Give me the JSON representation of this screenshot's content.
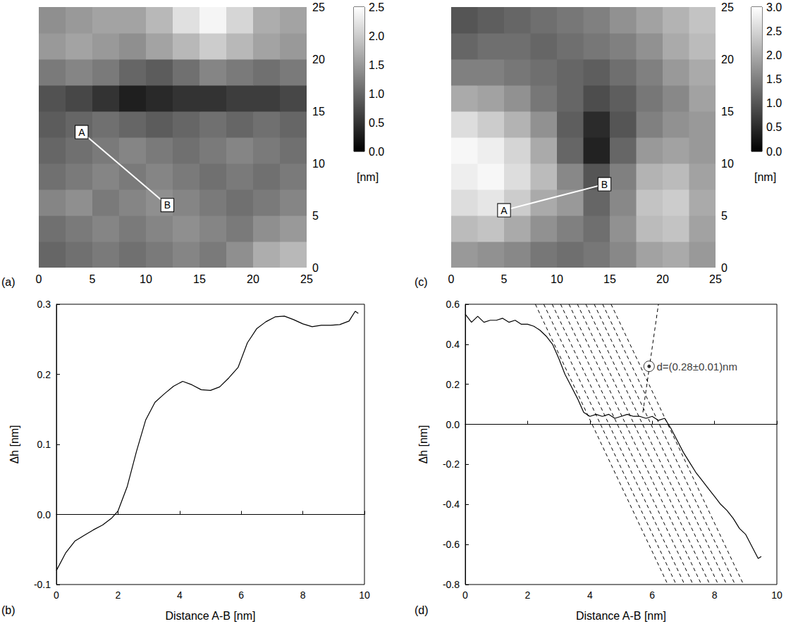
{
  "chart_data": [
    {
      "panel_label": "(a)",
      "type": "heatmap",
      "xlim": [
        0,
        25
      ],
      "xticks": [
        0,
        5,
        10,
        15,
        20,
        25
      ],
      "ylim": [
        0,
        25
      ],
      "yticks": [
        0,
        5,
        10,
        15,
        20,
        25
      ],
      "cells": [
        [
          1.0,
          1.1,
          1.2,
          1.1,
          1.2,
          1.3,
          1.2,
          1.4,
          1.7,
          1.8
        ],
        [
          1.1,
          1.2,
          1.3,
          1.2,
          1.3,
          1.4,
          1.3,
          1.2,
          1.4,
          1.5
        ],
        [
          1.3,
          1.4,
          1.2,
          1.3,
          1.4,
          1.3,
          1.2,
          1.1,
          1.2,
          1.3
        ],
        [
          1.1,
          1.2,
          1.3,
          1.2,
          1.3,
          1.2,
          1.1,
          1.2,
          1.1,
          1.2
        ],
        [
          1.0,
          1.1,
          1.2,
          1.3,
          1.2,
          1.1,
          1.2,
          1.3,
          1.2,
          1.1
        ],
        [
          0.9,
          1.0,
          1.1,
          1.0,
          0.9,
          1.0,
          1.1,
          1.0,
          1.1,
          1.0
        ],
        [
          0.8,
          0.7,
          0.5,
          0.3,
          0.4,
          0.5,
          0.5,
          0.6,
          0.6,
          0.7
        ],
        [
          1.2,
          1.3,
          1.2,
          1.0,
          0.9,
          1.1,
          1.3,
          1.2,
          1.1,
          1.2
        ],
        [
          1.5,
          1.6,
          1.5,
          1.4,
          1.6,
          1.8,
          2.0,
          1.8,
          1.6,
          1.5
        ],
        [
          1.4,
          1.5,
          1.6,
          1.6,
          1.8,
          2.2,
          2.4,
          2.1,
          1.7,
          1.6
        ]
      ],
      "colorbar": {
        "range": [
          0,
          2.5
        ],
        "ticks": [
          {
            "value": 0,
            "label": "0.0"
          },
          0.5,
          {
            "value": 1,
            "label": "1.0"
          },
          1.5,
          {
            "value": 2,
            "label": "2.0"
          },
          2.5
        ],
        "label": "[nm]"
      },
      "line": [
        {
          "label": "A",
          "x": 4,
          "y": 13
        },
        {
          "label": "B",
          "x": 12,
          "y": 6
        }
      ]
    },
    {
      "panel_label": "(c)",
      "type": "heatmap",
      "xlim": [
        0,
        25
      ],
      "xticks": [
        0,
        5,
        10,
        15,
        20,
        25
      ],
      "ylim": [
        0,
        25
      ],
      "yticks": [
        0,
        5,
        10,
        15,
        20,
        25
      ],
      "cells": [
        [
          1.8,
          1.7,
          1.6,
          1.4,
          1.3,
          1.4,
          1.6,
          1.9,
          2.0,
          1.8
        ],
        [
          2.2,
          2.3,
          2.0,
          1.7,
          1.5,
          1.3,
          1.7,
          2.2,
          2.3,
          1.9
        ],
        [
          2.6,
          2.7,
          2.4,
          2.0,
          1.8,
          1.2,
          1.6,
          2.3,
          2.4,
          2.0
        ],
        [
          2.8,
          2.9,
          2.6,
          2.2,
          1.6,
          1.0,
          1.5,
          2.1,
          2.2,
          1.9
        ],
        [
          2.9,
          2.8,
          2.5,
          2.0,
          1.2,
          0.4,
          1.2,
          1.8,
          1.9,
          1.8
        ],
        [
          2.6,
          2.4,
          2.1,
          1.7,
          1.1,
          0.5,
          1.0,
          1.5,
          1.7,
          1.8
        ],
        [
          2.0,
          1.9,
          1.7,
          1.4,
          1.2,
          0.9,
          1.1,
          1.4,
          1.6,
          1.9
        ],
        [
          1.5,
          1.5,
          1.4,
          1.3,
          1.2,
          1.1,
          1.3,
          1.5,
          1.8,
          2.0
        ],
        [
          1.2,
          1.3,
          1.3,
          1.2,
          1.3,
          1.4,
          1.5,
          1.7,
          2.0,
          2.2
        ],
        [
          1.0,
          1.1,
          1.2,
          1.3,
          1.4,
          1.5,
          1.7,
          1.9,
          2.1,
          2.3
        ]
      ],
      "colorbar": {
        "range": [
          0,
          3
        ],
        "ticks": [
          {
            "value": 0,
            "label": "0.0"
          },
          0.5,
          {
            "value": 1,
            "label": "1.0"
          },
          1.5,
          {
            "value": 2,
            "label": "2.0"
          },
          2.5,
          {
            "value": 3,
            "label": "3.0"
          }
        ],
        "label": "[nm]"
      },
      "line": [
        {
          "label": "A",
          "x": 5,
          "y": 5.5
        },
        {
          "label": "B",
          "x": 14.5,
          "y": 8
        }
      ]
    },
    {
      "panel_label": "(b)",
      "type": "line",
      "x_label": "Distance A-B [nm]",
      "y_label": "Δh [nm]",
      "xlim": [
        0,
        10
      ],
      "xticks": [
        0,
        2,
        4,
        6,
        8,
        10
      ],
      "ylim": [
        -0.1,
        0.3
      ],
      "yticks": [
        -0.1,
        {
          "value": 0,
          "label": "0.0"
        },
        0.1,
        0.2,
        0.3
      ],
      "series": [
        {
          "color": "#000000",
          "x": [
            0,
            0.3,
            0.6,
            0.9,
            1.2,
            1.5,
            1.8,
            2.0,
            2.3,
            2.6,
            2.9,
            3.2,
            3.5,
            3.8,
            4.1,
            4.4,
            4.7,
            5.0,
            5.3,
            5.6,
            5.9,
            6.2,
            6.5,
            6.8,
            7.1,
            7.4,
            7.7,
            8.0,
            8.3,
            8.6,
            8.9,
            9.2,
            9.5,
            9.7,
            9.8
          ],
          "values": [
            -0.08,
            -0.055,
            -0.038,
            -0.03,
            -0.022,
            -0.015,
            -0.005,
            0.005,
            0.04,
            0.09,
            0.135,
            0.16,
            0.172,
            0.183,
            0.19,
            0.185,
            0.178,
            0.177,
            0.182,
            0.195,
            0.21,
            0.245,
            0.265,
            0.275,
            0.282,
            0.283,
            0.278,
            0.272,
            0.268,
            0.27,
            0.27,
            0.271,
            0.276,
            0.29,
            0.287
          ]
        }
      ]
    },
    {
      "panel_label": "(d)",
      "type": "line",
      "x_label": "Distance A-B [nm]",
      "y_label": "Δh [nm]",
      "xlim": [
        0,
        10
      ],
      "xticks": [
        0,
        2,
        4,
        6,
        8,
        10
      ],
      "ylim": [
        -0.8,
        0.6
      ],
      "yticks": [
        -0.8,
        -0.6,
        -0.4,
        -0.2,
        {
          "value": 0,
          "label": "0.0"
        },
        0.2,
        0.4,
        0.6
      ],
      "series": [
        {
          "color": "#000000",
          "x": [
            0,
            0.2,
            0.4,
            0.6,
            0.8,
            1.0,
            1.2,
            1.4,
            1.6,
            1.8,
            2.0,
            2.2,
            2.4,
            2.6,
            2.8,
            3.0,
            3.2,
            3.4,
            3.6,
            3.8,
            4.0,
            4.2,
            4.4,
            4.6,
            4.8,
            5.0,
            5.2,
            5.4,
            5.6,
            5.8,
            6.0,
            6.2,
            6.4,
            6.6,
            6.8,
            7.0,
            7.2,
            7.4,
            7.6,
            7.8,
            8.0,
            8.2,
            8.4,
            8.6,
            8.8,
            9.0,
            9.2,
            9.4,
            9.5
          ],
          "values": [
            0.55,
            0.51,
            0.54,
            0.51,
            0.52,
            0.52,
            0.53,
            0.51,
            0.52,
            0.5,
            0.5,
            0.49,
            0.47,
            0.44,
            0.4,
            0.33,
            0.25,
            0.19,
            0.13,
            0.06,
            0.04,
            0.05,
            0.04,
            0.05,
            0.03,
            0.04,
            0.05,
            0.04,
            0.04,
            0.03,
            0.04,
            0.02,
            0.03,
            -0.02,
            -0.08,
            -0.14,
            -0.19,
            -0.24,
            -0.28,
            -0.32,
            -0.36,
            -0.4,
            -0.43,
            -0.47,
            -0.52,
            -0.55,
            -0.61,
            -0.67,
            -0.66
          ]
        }
      ],
      "lines": [
        {
          "x": [
            2.25,
            6.5
          ],
          "values": [
            0.6,
            -0.8
          ],
          "line_style": "dashed"
        },
        {
          "x": [
            2.52,
            6.77
          ],
          "values": [
            0.6,
            -0.8
          ],
          "line_style": "dashed"
        },
        {
          "x": [
            2.79,
            7.04
          ],
          "values": [
            0.6,
            -0.8
          ],
          "line_style": "dashed"
        },
        {
          "x": [
            3.06,
            7.31
          ],
          "values": [
            0.6,
            -0.8
          ],
          "line_style": "dashed"
        },
        {
          "x": [
            3.33,
            7.58
          ],
          "values": [
            0.6,
            -0.8
          ],
          "line_style": "dashed"
        },
        {
          "x": [
            3.6,
            7.85
          ],
          "values": [
            0.6,
            -0.8
          ],
          "line_style": "dashed"
        },
        {
          "x": [
            3.87,
            8.12
          ],
          "values": [
            0.6,
            -0.8
          ],
          "line_style": "dashed"
        },
        {
          "x": [
            4.14,
            8.39
          ],
          "values": [
            0.6,
            -0.8
          ],
          "line_style": "dashed"
        },
        {
          "x": [
            4.41,
            8.66
          ],
          "values": [
            0.6,
            -0.8
          ],
          "line_style": "dashed"
        },
        {
          "x": [
            4.68,
            8.93
          ],
          "values": [
            0.6,
            -0.8
          ],
          "line_style": "dashed"
        },
        {
          "x": [
            5.7,
            6.2
          ],
          "values": [
            0.06,
            0.6
          ],
          "line_style": "dashed"
        }
      ],
      "marker_point": {
        "x": 5.9,
        "y": 0.29,
        "marker": "circle-dot"
      },
      "annotations": [
        {
          "text": "d=(0.28±0.01)nm",
          "x": 6.05,
          "y": 0.29
        }
      ]
    }
  ]
}
